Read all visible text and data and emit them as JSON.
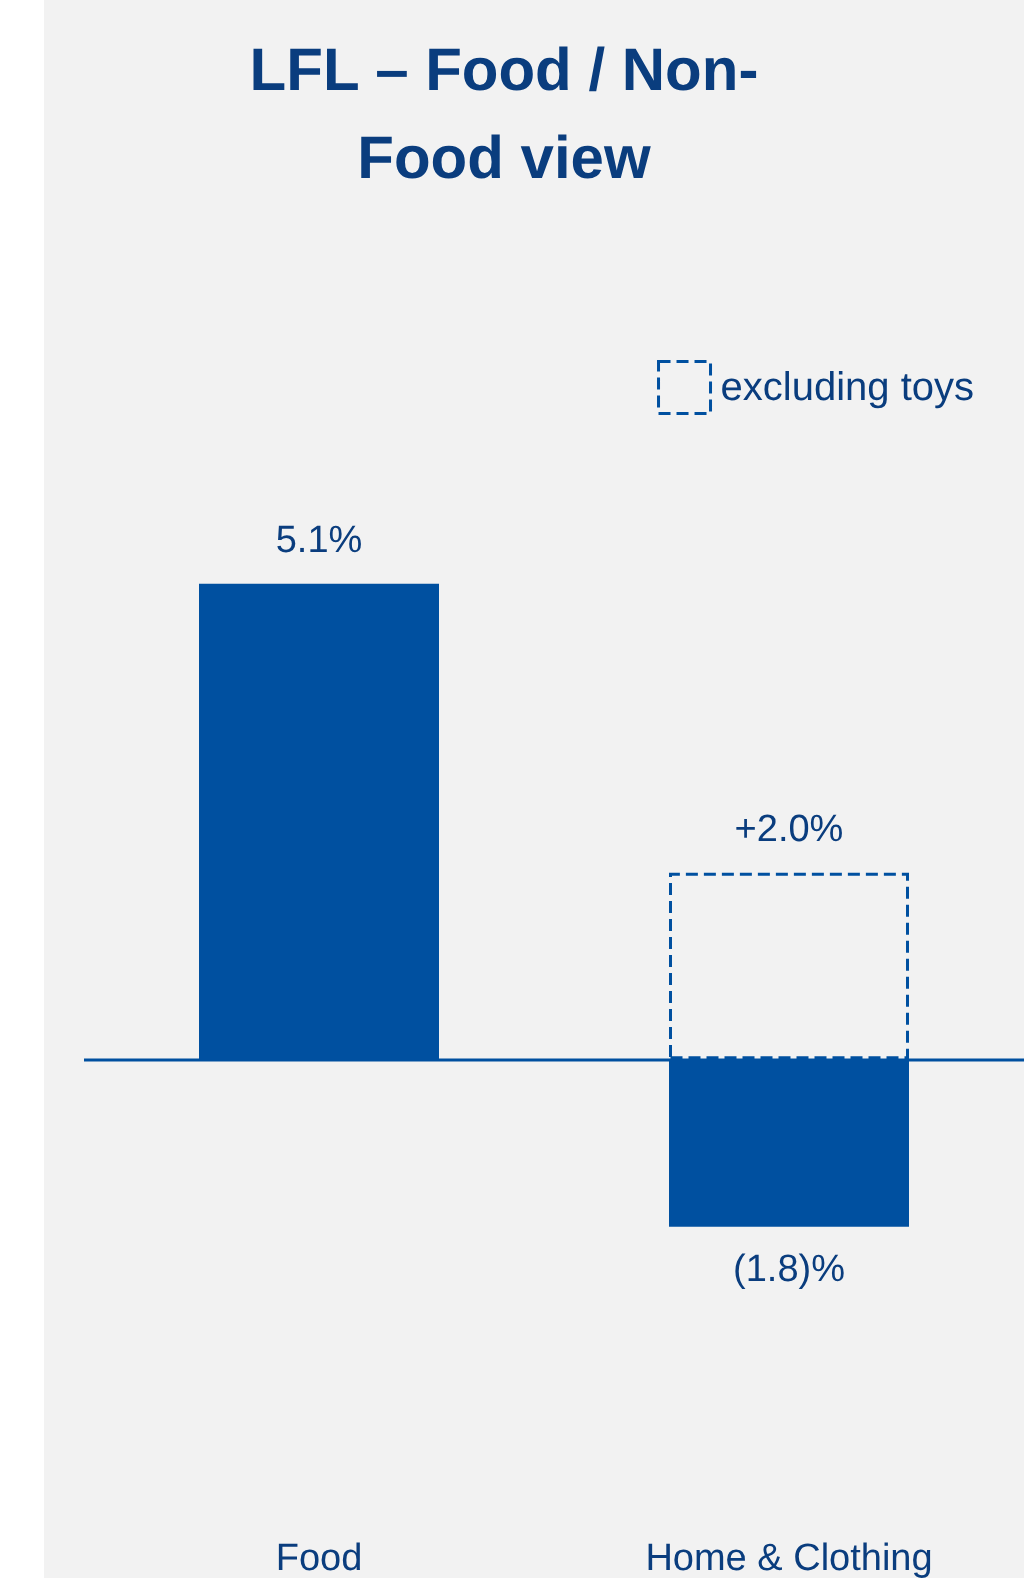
{
  "chart_data": {
    "type": "bar",
    "title": "LFL – Food / Non-Food view",
    "categories": [
      "Food",
      "Home & Clothing"
    ],
    "series": [
      {
        "color": "#0050a0",
        "values": [
          5.1,
          -1.8
        ],
        "value_labels": [
          "5.1%",
          "(1.8)%"
        ]
      },
      {
        "name": "excluding toys",
        "color": "#0050a0",
        "line_style": "dashed",
        "values": [
          null,
          2.0
        ],
        "value_labels": [
          null,
          "+2.0%"
        ]
      }
    ],
    "ref_lines": [
      {
        "axis": "y",
        "value": 0,
        "color": "#0050a0"
      }
    ],
    "legend": "top right"
  }
}
